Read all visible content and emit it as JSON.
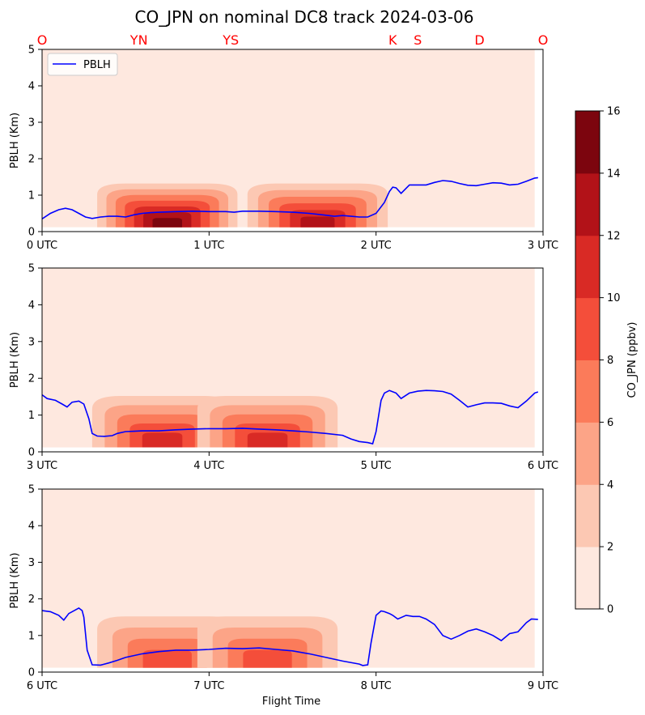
{
  "chart_data": {
    "type": "area",
    "title": "CO_JPN on nominal DC8 track 2024-03-06",
    "xlabel": "Flight Time",
    "ylabel": "PBLH (Km)",
    "ylim": [
      0,
      5
    ],
    "y_ticks": [
      "0",
      "1",
      "2",
      "3",
      "4",
      "5"
    ],
    "legend": {
      "entries": [
        "PBLH"
      ],
      "placement": "top-left"
    },
    "grid": false,
    "colormap": {
      "label": "CO_JPN (ppbv)",
      "levels": [
        0,
        2,
        4,
        6,
        8,
        10,
        12,
        14,
        16
      ],
      "tick_labels": [
        "0",
        "2",
        "4",
        "6",
        "8",
        "10",
        "12",
        "14",
        "16"
      ],
      "colors": [
        "#fee8df",
        "#fcc8b3",
        "#fca487",
        "#fb7b5a",
        "#f44e3a",
        "#d92a25",
        "#b21218",
        "#7c050e"
      ]
    },
    "site_labels": [
      {
        "label": "O",
        "time": 0.0
      },
      {
        "label": "YN",
        "time": 0.58
      },
      {
        "label": "YS",
        "time": 1.13
      },
      {
        "label": "K",
        "time": 2.1
      },
      {
        "label": "S",
        "time": 2.25
      },
      {
        "label": "D",
        "time": 2.62
      },
      {
        "label": "O",
        "time": 3.0
      }
    ],
    "panels": [
      {
        "x_ticks": [
          "0 UTC",
          "1 UTC",
          "2 UTC",
          "3 UTC"
        ],
        "xlim": [
          0,
          3
        ],
        "pblh": {
          "name": "PBLH",
          "x": [
            0.0,
            0.05,
            0.1,
            0.14,
            0.18,
            0.22,
            0.26,
            0.3,
            0.35,
            0.4,
            0.45,
            0.5,
            0.55,
            0.6,
            0.65,
            0.7,
            0.75,
            0.8,
            0.9,
            1.0,
            1.1,
            1.15,
            1.2,
            1.3,
            1.4,
            1.5,
            1.6,
            1.7,
            1.75,
            1.8,
            1.85,
            1.9,
            1.95,
            2.0,
            2.05,
            2.08,
            2.1,
            2.12,
            2.15,
            2.2,
            2.25,
            2.3,
            2.35,
            2.4,
            2.45,
            2.5,
            2.55,
            2.6,
            2.65,
            2.7,
            2.75,
            2.8,
            2.85,
            2.9,
            2.95,
            2.97
          ],
          "y": [
            0.35,
            0.5,
            0.6,
            0.64,
            0.6,
            0.5,
            0.4,
            0.36,
            0.4,
            0.42,
            0.42,
            0.4,
            0.46,
            0.5,
            0.52,
            0.53,
            0.54,
            0.55,
            0.56,
            0.55,
            0.55,
            0.53,
            0.56,
            0.56,
            0.55,
            0.53,
            0.5,
            0.45,
            0.42,
            0.44,
            0.42,
            0.4,
            0.4,
            0.5,
            0.8,
            1.1,
            1.22,
            1.2,
            1.05,
            1.28,
            1.28,
            1.28,
            1.35,
            1.4,
            1.38,
            1.32,
            1.27,
            1.26,
            1.3,
            1.34,
            1.33,
            1.28,
            1.3,
            1.38,
            1.47,
            1.48
          ]
        },
        "co_plumes": [
          {
            "center": 0.75,
            "level_max": 7,
            "top_km": 1.2
          },
          {
            "center": 1.65,
            "level_max": 6,
            "top_km": 1.2
          }
        ]
      },
      {
        "x_ticks": [
          "3 UTC",
          "4 UTC",
          "5 UTC",
          "6 UTC"
        ],
        "xlim": [
          3,
          6
        ],
        "pblh": {
          "name": "PBLH",
          "x": [
            3.0,
            3.03,
            3.08,
            3.12,
            3.15,
            3.18,
            3.22,
            3.25,
            3.28,
            3.3,
            3.33,
            3.37,
            3.42,
            3.45,
            3.5,
            3.55,
            3.6,
            3.7,
            3.8,
            3.9,
            4.0,
            4.1,
            4.2,
            4.3,
            4.4,
            4.5,
            4.6,
            4.7,
            4.8,
            4.85,
            4.9,
            4.95,
            4.98,
            5.0,
            5.03,
            5.05,
            5.08,
            5.12,
            5.15,
            5.2,
            5.25,
            5.3,
            5.35,
            5.4,
            5.45,
            5.5,
            5.55,
            5.6,
            5.65,
            5.7,
            5.75,
            5.8,
            5.85,
            5.9,
            5.95,
            5.97
          ],
          "y": [
            1.55,
            1.45,
            1.4,
            1.3,
            1.22,
            1.35,
            1.38,
            1.3,
            0.9,
            0.5,
            0.43,
            0.42,
            0.44,
            0.5,
            0.55,
            0.56,
            0.57,
            0.57,
            0.6,
            0.62,
            0.63,
            0.63,
            0.64,
            0.62,
            0.6,
            0.57,
            0.54,
            0.5,
            0.45,
            0.35,
            0.28,
            0.25,
            0.22,
            0.55,
            1.4,
            1.6,
            1.67,
            1.6,
            1.45,
            1.6,
            1.65,
            1.67,
            1.66,
            1.64,
            1.57,
            1.4,
            1.22,
            1.28,
            1.33,
            1.33,
            1.32,
            1.25,
            1.2,
            1.38,
            1.6,
            1.63
          ]
        },
        "co_plumes": [
          {
            "center": 3.72,
            "level_max": 5,
            "top_km": 1.4
          },
          {
            "center": 4.35,
            "level_max": 5,
            "top_km": 1.4
          }
        ]
      },
      {
        "x_ticks": [
          "6 UTC",
          "7 UTC",
          "8 UTC",
          "9 UTC"
        ],
        "xlim": [
          6,
          9
        ],
        "pblh": {
          "name": "PBLH",
          "x": [
            6.0,
            6.05,
            6.1,
            6.13,
            6.16,
            6.2,
            6.22,
            6.24,
            6.25,
            6.27,
            6.3,
            6.35,
            6.4,
            6.45,
            6.5,
            6.6,
            6.7,
            6.8,
            6.9,
            7.0,
            7.1,
            7.2,
            7.3,
            7.4,
            7.5,
            7.6,
            7.7,
            7.8,
            7.9,
            7.92,
            7.95,
            7.97,
            8.0,
            8.03,
            8.05,
            8.08,
            8.1,
            8.13,
            8.18,
            8.22,
            8.26,
            8.3,
            8.35,
            8.4,
            8.45,
            8.5,
            8.55,
            8.6,
            8.65,
            8.7,
            8.75,
            8.8,
            8.85,
            8.9,
            8.93,
            8.97
          ],
          "y": [
            1.68,
            1.65,
            1.55,
            1.42,
            1.6,
            1.7,
            1.75,
            1.68,
            1.5,
            0.6,
            0.2,
            0.19,
            0.25,
            0.32,
            0.4,
            0.5,
            0.56,
            0.6,
            0.6,
            0.62,
            0.65,
            0.64,
            0.66,
            0.62,
            0.58,
            0.5,
            0.4,
            0.3,
            0.22,
            0.18,
            0.2,
            0.8,
            1.55,
            1.67,
            1.65,
            1.6,
            1.55,
            1.45,
            1.55,
            1.52,
            1.52,
            1.45,
            1.3,
            1.0,
            0.9,
            1.0,
            1.12,
            1.18,
            1.1,
            1.0,
            0.86,
            1.05,
            1.1,
            1.35,
            1.45,
            1.44
          ]
        },
        "co_plumes": [
          {
            "center": 6.75,
            "level_max": 4,
            "top_km": 1.4
          },
          {
            "center": 7.35,
            "level_max": 4,
            "top_km": 1.4
          }
        ]
      }
    ]
  }
}
